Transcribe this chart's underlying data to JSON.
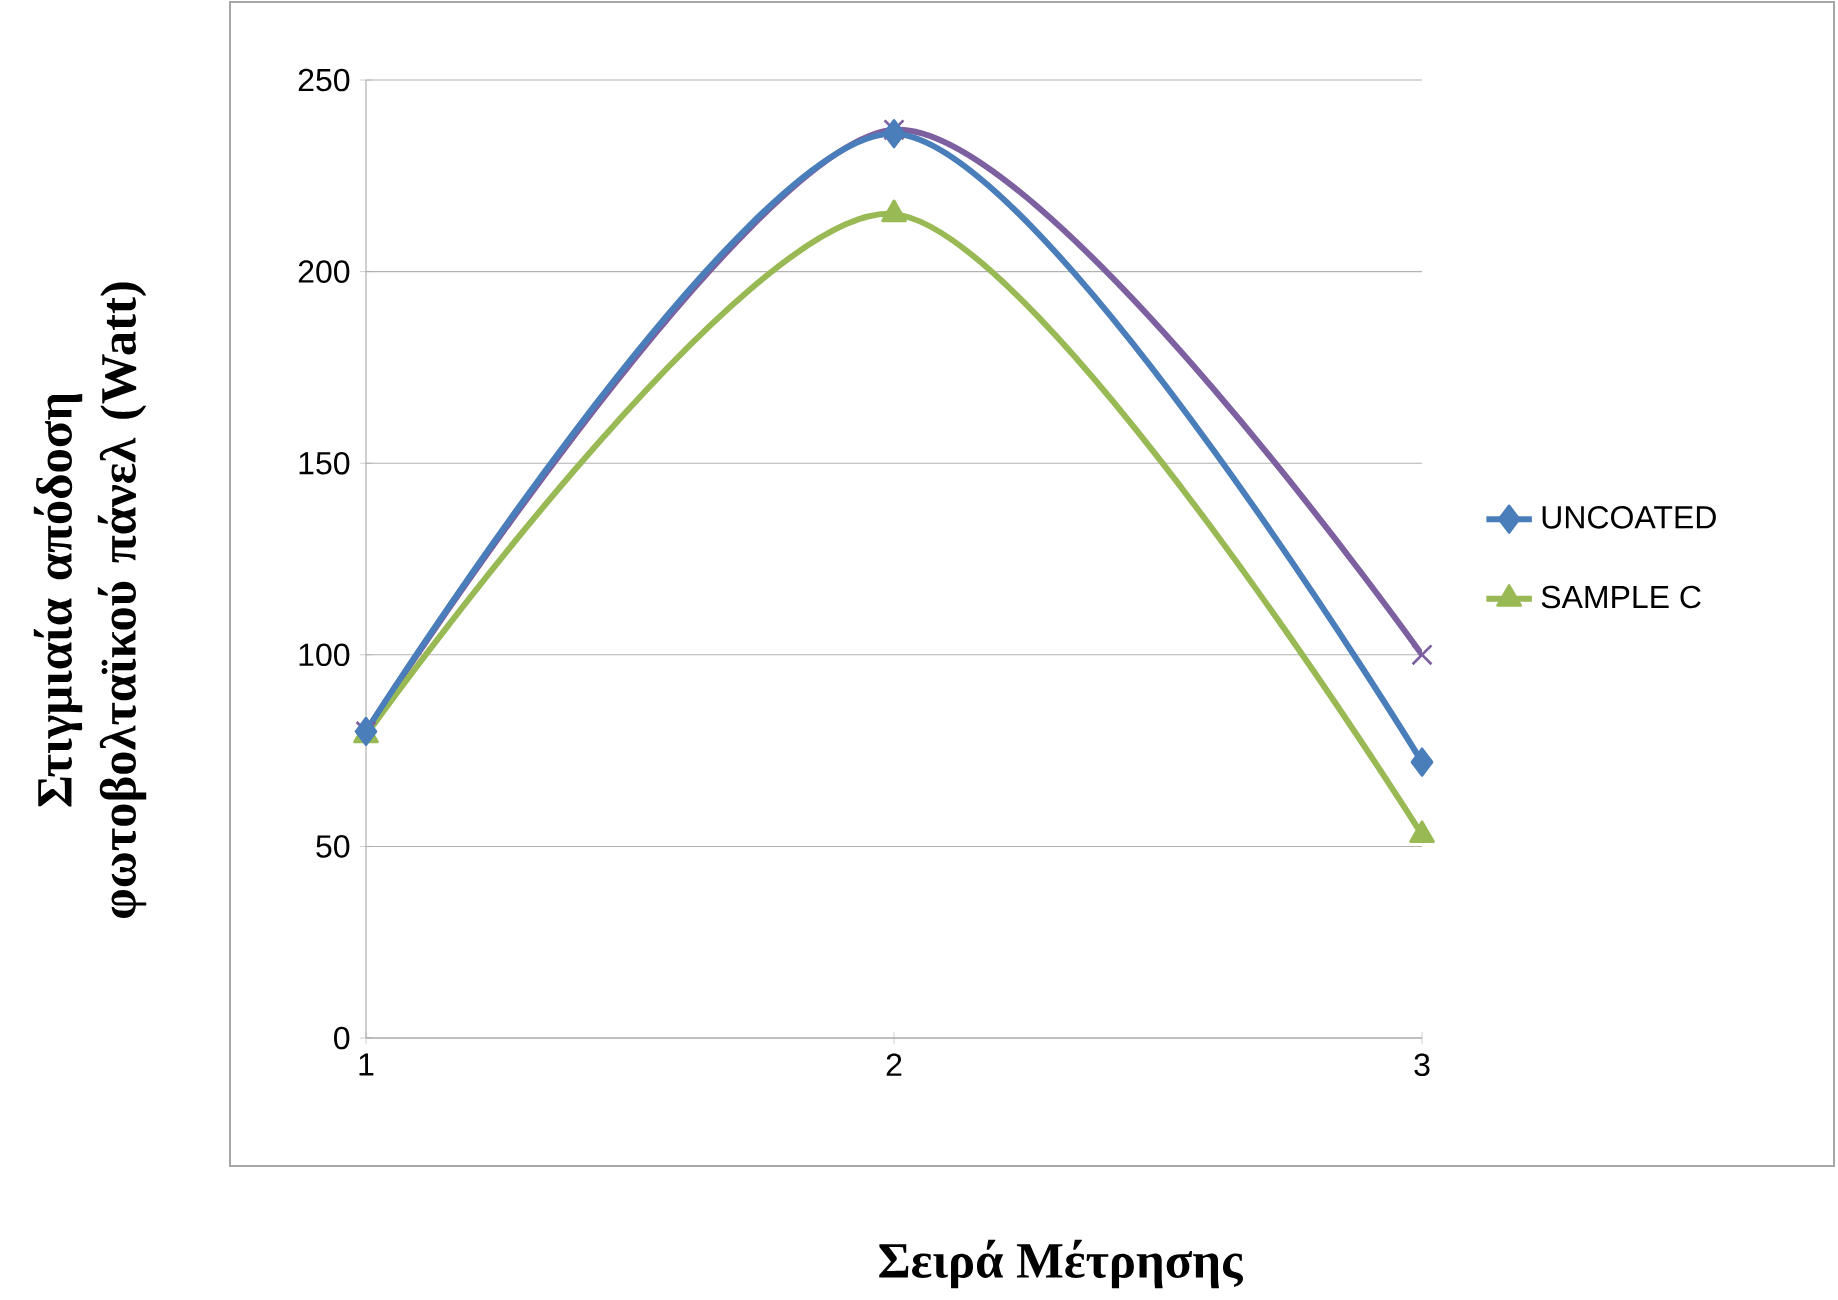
{
  "chart_data": {
    "type": "line",
    "xlabel": "Σειρά Μέτρησης",
    "ylabel": "Στιγμιαία απόδοση φωτοβολταϊκού πάνελ (Watt)",
    "x": [
      1,
      2,
      3
    ],
    "series": [
      {
        "name": "UNCOATED",
        "color": "#4a7ebb",
        "marker": "diamond",
        "values": [
          80,
          236,
          72
        ]
      },
      {
        "name": "SAMPLE C",
        "color": "#98b954",
        "marker": "triangle",
        "values": [
          79,
          215,
          53
        ]
      },
      {
        "color": "#7d60a0",
        "marker": "cross",
        "values": [
          80,
          237,
          100
        ]
      }
    ],
    "xlim": [
      1,
      3
    ],
    "xticks": [
      1,
      2,
      3
    ],
    "ylim": [
      0,
      250
    ],
    "yticks": [
      0,
      50,
      100,
      150,
      200,
      250
    ],
    "grid": "y",
    "legend": "right",
    "line_style": "solid"
  }
}
